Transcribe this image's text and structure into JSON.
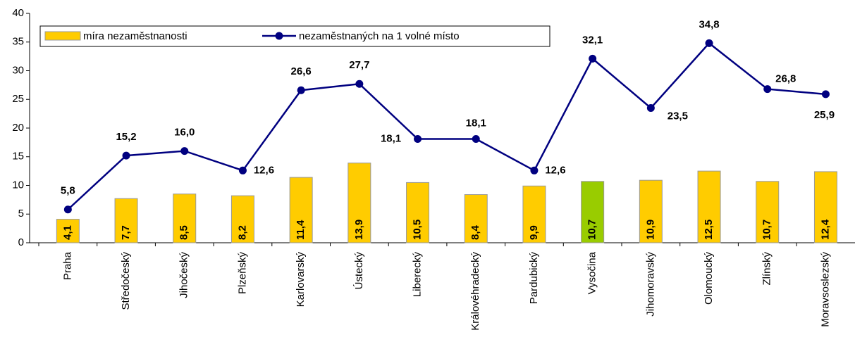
{
  "chart_data": {
    "type": "bar",
    "categories": [
      "Praha",
      "Středočeský",
      "Jihočeský",
      "Plzeňský",
      "Karlovarský",
      "Ústecký",
      "Liberecký",
      "Královéhradecký",
      "Pardubický",
      "Vysočina",
      "Jihomoravský",
      "Olomoucký",
      "Zlínský",
      "Moravsoslezský"
    ],
    "series": [
      {
        "name": "míra nezaměstnanosti",
        "type": "bar",
        "color": "#FFCC00",
        "colors": [
          "#FFCC00",
          "#FFCC00",
          "#FFCC00",
          "#FFCC00",
          "#FFCC00",
          "#FFCC00",
          "#FFCC00",
          "#FFCC00",
          "#FFCC00",
          "#99CC00",
          "#FFCC00",
          "#FFCC00",
          "#FFCC00",
          "#FFCC00"
        ],
        "values": [
          4.1,
          7.7,
          8.5,
          8.2,
          11.4,
          13.9,
          10.5,
          8.4,
          9.9,
          10.7,
          10.9,
          12.5,
          10.7,
          12.4
        ],
        "value_labels": [
          "4,1",
          "7,7",
          "8,5",
          "8,2",
          "11,4",
          "13,9",
          "10,5",
          "8,4",
          "9,9",
          "10,7",
          "10,9",
          "12,5",
          "10,7",
          "12,4"
        ]
      },
      {
        "name": "nezaměstnaných na 1 volné místo",
        "type": "line",
        "color": "#000080",
        "values": [
          5.8,
          15.2,
          16.0,
          12.6,
          26.6,
          27.7,
          18.1,
          18.1,
          12.6,
          32.1,
          23.5,
          34.8,
          26.8,
          25.9
        ],
        "value_labels": [
          "5,8",
          "15,2",
          "16,0",
          "12,6",
          "26,6",
          "27,7",
          "18,1",
          "18,1",
          "12,6",
          "32,1",
          "23,5",
          "34,8",
          "26,8",
          "25,9"
        ]
      }
    ],
    "ylim": [
      0,
      40
    ],
    "yticks": [
      0,
      5,
      10,
      15,
      20,
      25,
      30,
      35,
      40
    ],
    "grid": false
  }
}
